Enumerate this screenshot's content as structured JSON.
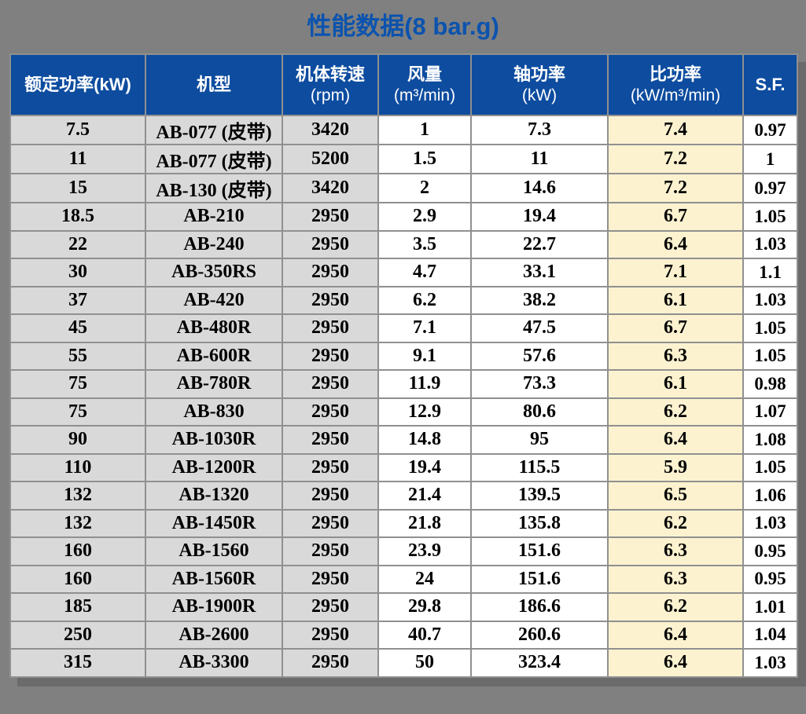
{
  "page": {
    "background_color": "#808080",
    "title_color": "#0B53AE",
    "header_bg_color": "#0D4C9F",
    "header_text_color": "#FFFFFF",
    "gray_column_bg": "#D9D9D9",
    "highlight_column_bg": "#FCF2D0",
    "grid_color": "#909090"
  },
  "chart_data": {
    "type": "table",
    "title": "性能数据(8 bar.g)",
    "columns": [
      {
        "label": "额定功率(kW)",
        "unit": ""
      },
      {
        "label": "机型",
        "unit": ""
      },
      {
        "label": "机体转速",
        "unit": "(rpm)"
      },
      {
        "label": "风量",
        "unit": "(m³/min)"
      },
      {
        "label": "轴功率",
        "unit": "(kW)"
      },
      {
        "label": "比功率",
        "unit": "(kW/m³/min)"
      },
      {
        "label": "S.F.",
        "unit": ""
      }
    ],
    "rows": [
      [
        "7.5",
        "AB-077 (皮带)",
        "3420",
        "1",
        "7.3",
        "7.4",
        "0.97"
      ],
      [
        "11",
        "AB-077 (皮带)",
        "5200",
        "1.5",
        "11",
        "7.2",
        "1"
      ],
      [
        "15",
        "AB-130 (皮带)",
        "3420",
        "2",
        "14.6",
        "7.2",
        "0.97"
      ],
      [
        "18.5",
        "AB-210",
        "2950",
        "2.9",
        "19.4",
        "6.7",
        "1.05"
      ],
      [
        "22",
        "AB-240",
        "2950",
        "3.5",
        "22.7",
        "6.4",
        "1.03"
      ],
      [
        "30",
        "AB-350RS",
        "2950",
        "4.7",
        "33.1",
        "7.1",
        "1.1"
      ],
      [
        "37",
        "AB-420",
        "2950",
        "6.2",
        "38.2",
        "6.1",
        "1.03"
      ],
      [
        "45",
        "AB-480R",
        "2950",
        "7.1",
        "47.5",
        "6.7",
        "1.05"
      ],
      [
        "55",
        "AB-600R",
        "2950",
        "9.1",
        "57.6",
        "6.3",
        "1.05"
      ],
      [
        "75",
        "AB-780R",
        "2950",
        "11.9",
        "73.3",
        "6.1",
        "0.98"
      ],
      [
        "75",
        "AB-830",
        "2950",
        "12.9",
        "80.6",
        "6.2",
        "1.07"
      ],
      [
        "90",
        "AB-1030R",
        "2950",
        "14.8",
        "95",
        "6.4",
        "1.08"
      ],
      [
        "110",
        "AB-1200R",
        "2950",
        "19.4",
        "115.5",
        "5.9",
        "1.05"
      ],
      [
        "132",
        "AB-1320",
        "2950",
        "21.4",
        "139.5",
        "6.5",
        "1.06"
      ],
      [
        "132",
        "AB-1450R",
        "2950",
        "21.8",
        "135.8",
        "6.2",
        "1.03"
      ],
      [
        "160",
        "AB-1560",
        "2950",
        "23.9",
        "151.6",
        "6.3",
        "0.95"
      ],
      [
        "160",
        "AB-1560R",
        "2950",
        "24",
        "151.6",
        "6.3",
        "0.95"
      ],
      [
        "185",
        "AB-1900R",
        "2950",
        "29.8",
        "186.6",
        "6.2",
        "1.01"
      ],
      [
        "250",
        "AB-2600",
        "2950",
        "40.7",
        "260.6",
        "6.4",
        "1.04"
      ],
      [
        "315",
        "AB-3300",
        "2950",
        "50",
        "323.4",
        "6.4",
        "1.03"
      ]
    ]
  }
}
